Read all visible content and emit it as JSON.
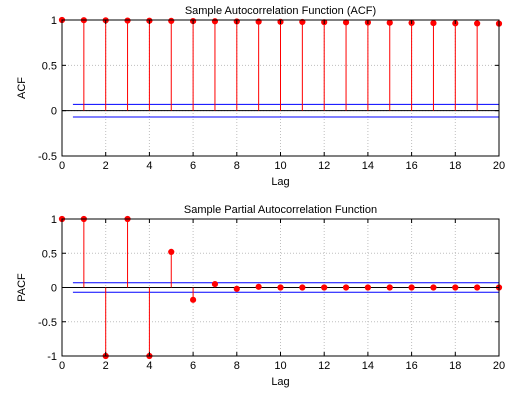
{
  "chart_data": [
    {
      "type": "stem",
      "title": "Sample Autocorrelation Function (ACF)",
      "xlabel": "Lag",
      "ylabel": "ACF",
      "xlim": [
        0,
        20
      ],
      "ylim": [
        -0.5,
        1
      ],
      "xticks": [
        "0",
        "2",
        "4",
        "6",
        "8",
        "10",
        "12",
        "14",
        "16",
        "18",
        "20"
      ],
      "yticks": [
        "-0.5",
        "0",
        "0.5",
        "1"
      ],
      "grid": true,
      "confidence_bounds": [
        0.07,
        -0.07
      ],
      "x": [
        0,
        1,
        2,
        3,
        4,
        5,
        6,
        7,
        8,
        9,
        10,
        11,
        12,
        13,
        14,
        15,
        16,
        17,
        18,
        19,
        20
      ],
      "values": [
        1.0,
        0.998,
        0.996,
        0.994,
        0.992,
        0.99,
        0.988,
        0.986,
        0.984,
        0.982,
        0.98,
        0.978,
        0.976,
        0.974,
        0.972,
        0.97,
        0.968,
        0.966,
        0.964,
        0.962,
        0.96
      ],
      "stem_color": "#ff0000",
      "bound_color": "#0000ff"
    },
    {
      "type": "stem",
      "title": "Sample Partial Autocorrelation Function",
      "xlabel": "Lag",
      "ylabel": "PACF",
      "xlim": [
        0,
        20
      ],
      "ylim": [
        -1,
        1
      ],
      "xticks": [
        "0",
        "2",
        "4",
        "6",
        "8",
        "10",
        "12",
        "14",
        "16",
        "18",
        "20"
      ],
      "yticks": [
        "-1",
        "-0.5",
        "0",
        "0.5",
        "1"
      ],
      "grid": true,
      "confidence_bounds": [
        0.07,
        -0.07
      ],
      "x": [
        0,
        1,
        2,
        3,
        4,
        5,
        6,
        7,
        8,
        9,
        10,
        11,
        12,
        13,
        14,
        15,
        16,
        17,
        18,
        19,
        20
      ],
      "values": [
        1.0,
        1.0,
        -1.0,
        1.0,
        -1.0,
        0.52,
        -0.18,
        0.05,
        -0.02,
        0.01,
        0.0,
        0.0,
        0.0,
        0.0,
        0.0,
        0.0,
        0.0,
        0.0,
        0.0,
        0.0,
        0.0
      ],
      "stem_color": "#ff0000",
      "bound_color": "#0000ff"
    }
  ]
}
